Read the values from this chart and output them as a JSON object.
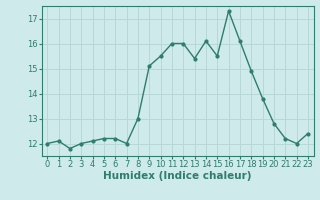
{
  "x": [
    0,
    1,
    2,
    3,
    4,
    5,
    6,
    7,
    8,
    9,
    10,
    11,
    12,
    13,
    14,
    15,
    16,
    17,
    18,
    19,
    20,
    21,
    22,
    23
  ],
  "y": [
    12.0,
    12.1,
    11.8,
    12.0,
    12.1,
    12.2,
    12.2,
    12.0,
    13.0,
    15.1,
    15.5,
    16.0,
    16.0,
    15.4,
    16.1,
    15.5,
    17.3,
    16.1,
    14.9,
    13.8,
    12.8,
    12.2,
    12.0,
    12.4
  ],
  "xlabel": "Humidex (Indice chaleur)",
  "xlim": [
    -0.5,
    23.5
  ],
  "ylim": [
    11.5,
    17.5
  ],
  "yticks": [
    12,
    13,
    14,
    15,
    16,
    17
  ],
  "xticks": [
    0,
    1,
    2,
    3,
    4,
    5,
    6,
    7,
    8,
    9,
    10,
    11,
    12,
    13,
    14,
    15,
    16,
    17,
    18,
    19,
    20,
    21,
    22,
    23
  ],
  "line_color": "#2e7d6e",
  "marker_size": 2.0,
  "line_width": 1.0,
  "bg_color": "#ceeaea",
  "grid_color": "#b8d8d8",
  "tick_color": "#2e7d6e",
  "label_color": "#2e7d6e",
  "xlabel_fontsize": 7.5,
  "tick_fontsize": 6.0
}
